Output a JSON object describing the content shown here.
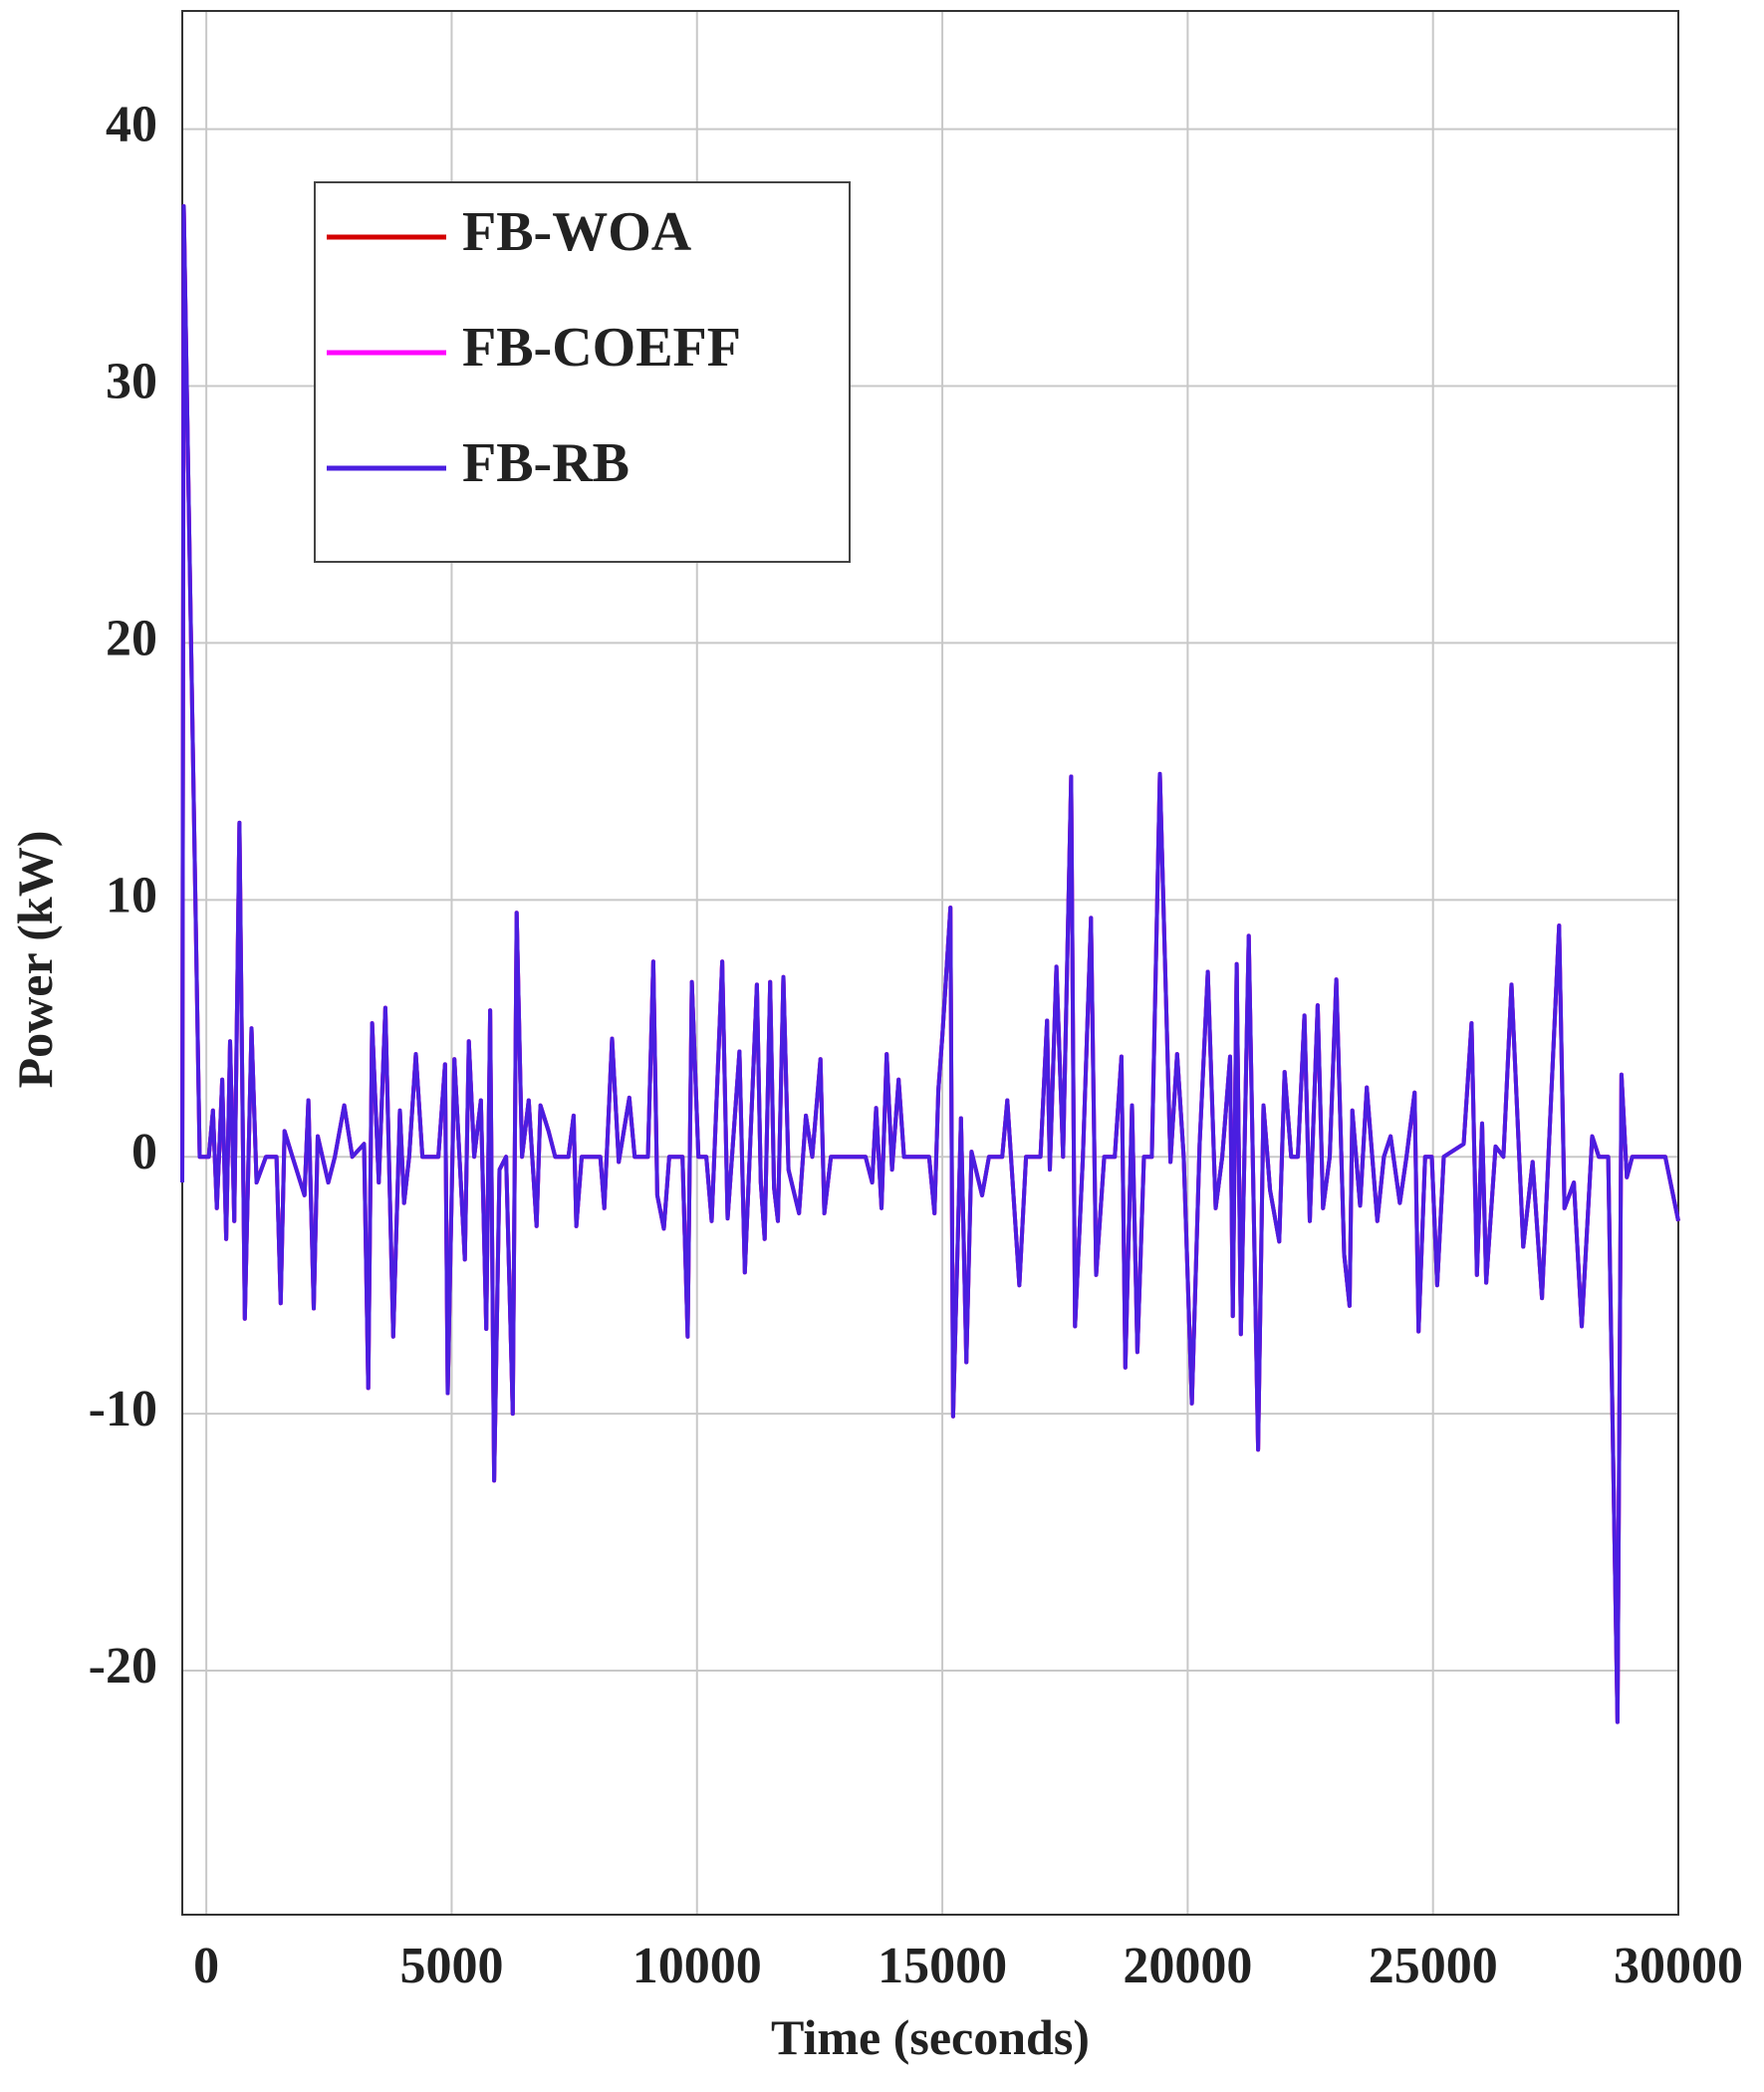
{
  "chart_data": {
    "type": "line",
    "xlabel": "Time (seconds)",
    "ylabel": "Power (kW)",
    "xlim": [
      -490,
      30000
    ],
    "ylim": [
      -29.5,
      44.6
    ],
    "xticks": [
      0,
      5000,
      10000,
      15000,
      20000,
      25000,
      30000
    ],
    "yticks": [
      -20,
      -10,
      0,
      10,
      20,
      30,
      40
    ],
    "grid": true,
    "legend_position": "upper left",
    "x": [
      -490,
      -460,
      -135,
      50,
      135,
      215,
      325,
      405,
      485,
      570,
      675,
      785,
      920,
      1025,
      1215,
      1430,
      1515,
      1595,
      1755,
      2000,
      2080,
      2190,
      2270,
      2485,
      2620,
      2810,
      2975,
      3215,
      3300,
      3380,
      3515,
      3650,
      3810,
      3945,
      4030,
      4135,
      4270,
      4405,
      4730,
      4865,
      4920,
      5055,
      5160,
      5270,
      5350,
      5460,
      5595,
      5705,
      5785,
      5865,
      5975,
      6110,
      6245,
      6325,
      6435,
      6570,
      6730,
      6810,
      6975,
      7110,
      7380,
      7485,
      7540,
      7650,
      8030,
      8110,
      8270,
      8405,
      8620,
      8730,
      9000,
      9110,
      9190,
      9325,
      9435,
      9705,
      9810,
      9895,
      10030,
      10190,
      10300,
      10515,
      10625,
      10865,
      10975,
      11220,
      11300,
      11380,
      11490,
      11570,
      11650,
      11760,
      11865,
      12080,
      12220,
      12350,
      12515,
      12595,
      12730,
      13435,
      13570,
      13650,
      13760,
      13865,
      13975,
      14110,
      14220,
      14730,
      14840,
      14920,
      15000,
      15165,
      15220,
      15380,
      15490,
      15595,
      15810,
      15950,
      16220,
      16325,
      16570,
      16705,
      17000,
      17135,
      17190,
      17325,
      17460,
      17625,
      17705,
      17865,
      18030,
      18135,
      18300,
      18515,
      18650,
      18730,
      18865,
      18975,
      19110,
      19270,
      19435,
      19650,
      19785,
      19920,
      20085,
      20245,
      20410,
      20570,
      20705,
      20865,
      20920,
      21000,
      21085,
      21245,
      21435,
      21545,
      21680,
      21865,
      21975,
      22110,
      22245,
      22380,
      22490,
      22650,
      22760,
      22895,
      23030,
      23190,
      23300,
      23355,
      23515,
      23650,
      23865,
      24000,
      24135,
      24325,
      24460,
      24625,
      24705,
      24840,
      24975,
      25085,
      25220,
      25625,
      25785,
      25895,
      26000,
      26085,
      26275,
      26435,
      26600,
      26840,
      27030,
      27220,
      27410,
      27570,
      27680,
      27870,
      28030,
      28245,
      28380,
      28570,
      28760,
      28840,
      28950,
      29060,
      29735,
      30000
    ],
    "series": [
      {
        "name": "FB-WOA",
        "color": "#d40000",
        "values": [
          -1,
          37,
          0,
          0,
          1.8,
          -2,
          3,
          -3.2,
          4.5,
          -2.5,
          13,
          -6.3,
          5,
          -1,
          0,
          0,
          -5.7,
          1,
          0,
          -1.5,
          2.2,
          -5.9,
          0.8,
          -1,
          0,
          2,
          0,
          0.5,
          -9,
          5.2,
          -1,
          5.8,
          -7,
          1.8,
          -1.8,
          0,
          4,
          0,
          0,
          3.6,
          -9.2,
          3.8,
          0,
          -4,
          4.5,
          0,
          2.2,
          -6.7,
          5.7,
          -12.6,
          -0.5,
          0,
          -10,
          9.5,
          0,
          2.2,
          -2.7,
          2,
          1,
          0,
          0,
          1.6,
          -2.7,
          0,
          0,
          -2,
          4.6,
          -0.2,
          2.3,
          0,
          0,
          7.6,
          -1.5,
          -2.8,
          0,
          0,
          -7,
          6.8,
          0,
          0,
          -2.5,
          7.6,
          -2.4,
          4.1,
          -4.5,
          6.7,
          -1,
          -3.2,
          6.8,
          -1.2,
          -2.5,
          7,
          -0.5,
          -2.2,
          1.6,
          0,
          3.8,
          -2.2,
          0,
          0,
          -1,
          1.9,
          -2,
          4,
          -0.5,
          3,
          0,
          0,
          -2.2,
          2.6,
          4.7,
          9.7,
          -10.1,
          1.5,
          -8,
          0.2,
          -1.5,
          0,
          0,
          2.2,
          -5,
          0,
          0,
          5.3,
          -0.5,
          7.4,
          0,
          14.8,
          -6.6,
          0,
          9.3,
          -4.6,
          0,
          0,
          3.9,
          -8.2,
          2,
          -7.6,
          0,
          0,
          14.9,
          -0.2,
          4,
          0,
          -9.6,
          0.5,
          7.2,
          -2,
          0,
          3.9,
          -6.2,
          7.5,
          -6.9,
          8.6,
          -11.4,
          2,
          -1.3,
          -3.3,
          3.3,
          0,
          0,
          5.5,
          -2.5,
          5.9,
          -2,
          0,
          6.9,
          -3.8,
          -5.8,
          1.8,
          -1.9,
          2.7,
          -2.5,
          0,
          0.8,
          -1.8,
          0,
          2.5,
          -6.8,
          0,
          0,
          -5,
          0,
          0.5,
          5.2,
          -4.6,
          1.3,
          -4.9,
          0.4,
          0,
          6.7,
          -3.5,
          -0.2,
          -5.5,
          2.4,
          9,
          -2,
          -1,
          -6.6,
          0.8,
          0,
          0,
          -22,
          3.2,
          -0.8,
          0,
          0,
          -2.5
        ]
      },
      {
        "name": "FB-COEFF",
        "color": "#ff00ff",
        "values": [
          -1,
          37,
          0,
          0,
          1.8,
          -2,
          3,
          -3.2,
          4.5,
          -2.5,
          13,
          -6.3,
          5,
          -1,
          0,
          0,
          -5.7,
          1,
          0,
          -1.5,
          2.2,
          -5.9,
          0.8,
          -1,
          0,
          2,
          0,
          0.5,
          -9,
          5.2,
          -1,
          5.8,
          -7,
          1.8,
          -1.8,
          0,
          4,
          0,
          0,
          3.6,
          -9.2,
          3.8,
          0,
          -4,
          4.5,
          0,
          2.2,
          -6.7,
          5.7,
          -12.6,
          -0.5,
          0,
          -10,
          9.5,
          0,
          2.2,
          -2.7,
          2,
          1,
          0,
          0,
          1.6,
          -2.7,
          0,
          0,
          -2,
          4.6,
          -0.2,
          2.3,
          0,
          0,
          7.6,
          -1.5,
          -2.8,
          0,
          0,
          -7,
          6.8,
          0,
          0,
          -2.5,
          7.6,
          -2.4,
          4.1,
          -4.5,
          6.7,
          -1,
          -3.2,
          6.8,
          -1.2,
          -2.5,
          7,
          -0.5,
          -2.2,
          1.6,
          0,
          3.8,
          -2.2,
          0,
          0,
          -1,
          1.9,
          -2,
          4,
          -0.5,
          3,
          0,
          0,
          -2.2,
          2.6,
          4.7,
          9.7,
          -10.1,
          1.5,
          -8,
          0.2,
          -1.5,
          0,
          0,
          2.2,
          -5,
          0,
          0,
          5.3,
          -0.5,
          7.4,
          0,
          14.8,
          -6.6,
          0,
          9.3,
          -4.6,
          0,
          0,
          3.9,
          -8.2,
          2,
          -7.6,
          0,
          0,
          14.9,
          -0.2,
          4,
          0,
          -9.6,
          0.5,
          7.2,
          -2,
          0,
          3.9,
          -6.2,
          7.5,
          -6.9,
          8.6,
          -11.4,
          2,
          -1.3,
          -3.3,
          3.3,
          0,
          0,
          5.5,
          -2.5,
          5.9,
          -2,
          0,
          6.9,
          -3.8,
          -5.8,
          1.8,
          -1.9,
          2.7,
          -2.5,
          0,
          0.8,
          -1.8,
          0,
          2.5,
          -6.8,
          0,
          0,
          -5,
          0,
          0.5,
          5.2,
          -4.6,
          1.3,
          -4.9,
          0.4,
          0,
          6.7,
          -3.5,
          -0.2,
          -5.5,
          2.4,
          9,
          -2,
          -1,
          -6.6,
          0.8,
          0,
          0,
          -22,
          3.2,
          -0.8,
          0,
          0,
          -2.5
        ]
      },
      {
        "name": "FB-RB",
        "color": "#4a1ee0",
        "values": [
          -1,
          37,
          0,
          0,
          1.8,
          -2,
          3,
          -3.2,
          4.5,
          -2.5,
          13,
          -6.3,
          5,
          -1,
          0,
          0,
          -5.7,
          1,
          0,
          -1.5,
          2.2,
          -5.9,
          0.8,
          -1,
          0,
          2,
          0,
          0.5,
          -9,
          5.2,
          -1,
          5.8,
          -7,
          1.8,
          -1.8,
          0,
          4,
          0,
          0,
          3.6,
          -9.2,
          3.8,
          0,
          -4,
          4.5,
          0,
          2.2,
          -6.7,
          5.7,
          -12.6,
          -0.5,
          0,
          -10,
          9.5,
          0,
          2.2,
          -2.7,
          2,
          1,
          0,
          0,
          1.6,
          -2.7,
          0,
          0,
          -2,
          4.6,
          -0.2,
          2.3,
          0,
          0,
          7.6,
          -1.5,
          -2.8,
          0,
          0,
          -7,
          6.8,
          0,
          0,
          -2.5,
          7.6,
          -2.4,
          4.1,
          -4.5,
          6.7,
          -1,
          -3.2,
          6.8,
          -1.2,
          -2.5,
          7,
          -0.5,
          -2.2,
          1.6,
          0,
          3.8,
          -2.2,
          0,
          0,
          -1,
          1.9,
          -2,
          4,
          -0.5,
          3,
          0,
          0,
          -2.2,
          2.6,
          4.7,
          9.7,
          -10.1,
          1.5,
          -8,
          0.2,
          -1.5,
          0,
          0,
          2.2,
          -5,
          0,
          0,
          5.3,
          -0.5,
          7.4,
          0,
          14.8,
          -6.6,
          0,
          9.3,
          -4.6,
          0,
          0,
          3.9,
          -8.2,
          2,
          -7.6,
          0,
          0,
          14.9,
          -0.2,
          4,
          0,
          -9.6,
          0.5,
          7.2,
          -2,
          0,
          3.9,
          -6.2,
          7.5,
          -6.9,
          8.6,
          -11.4,
          2,
          -1.3,
          -3.3,
          3.3,
          0,
          0,
          5.5,
          -2.5,
          5.9,
          -2,
          0,
          6.9,
          -3.8,
          -5.8,
          1.8,
          -1.9,
          2.7,
          -2.5,
          0,
          0.8,
          -1.8,
          0,
          2.5,
          -6.8,
          0,
          0,
          -5,
          0,
          0.5,
          5.2,
          -4.6,
          1.3,
          -4.9,
          0.4,
          0,
          6.7,
          -3.5,
          -0.2,
          -5.5,
          2.4,
          9,
          -2,
          -1,
          -6.6,
          0.8,
          0,
          0,
          -22,
          3.2,
          -0.8,
          0,
          0,
          -2.5
        ]
      }
    ]
  }
}
